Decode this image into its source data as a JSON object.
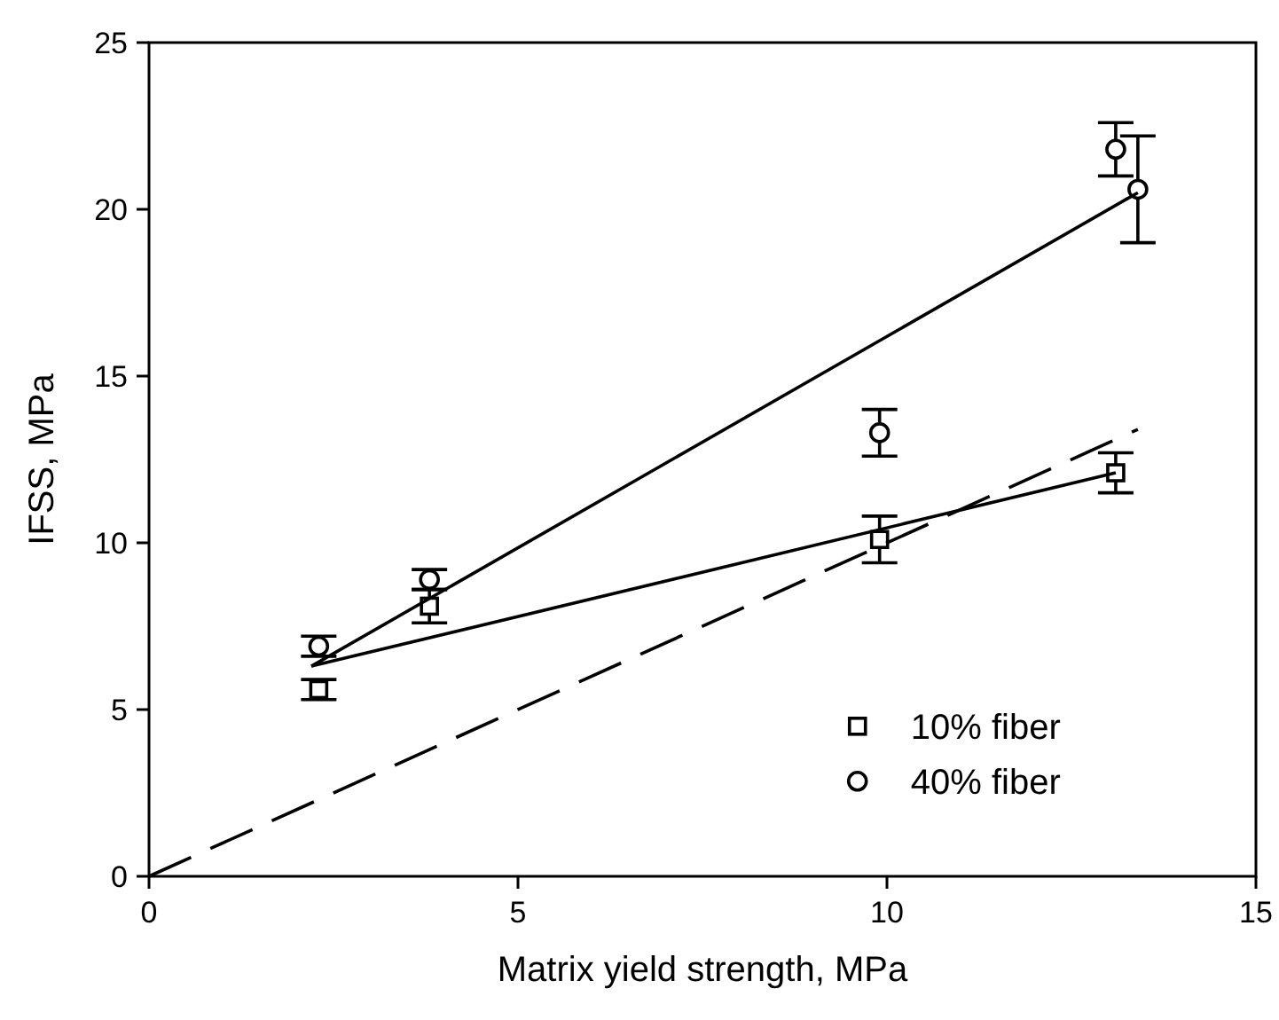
{
  "chart_data": {
    "type": "scatter",
    "xlabel": "Matrix yield strength, MPa",
    "ylabel": "IFSS, MPa",
    "xlim": [
      0,
      15
    ],
    "ylim": [
      0,
      25
    ],
    "xticks": [
      0,
      5,
      10,
      15
    ],
    "yticks": [
      0,
      5,
      10,
      15,
      20,
      25
    ],
    "grid": false,
    "legend": "bottom right",
    "series": [
      {
        "name": "10% fiber",
        "type": "scatter",
        "marker": "square",
        "color": "#000000",
        "x": [
          2.3,
          3.8,
          9.9,
          13.1
        ],
        "values": [
          5.6,
          8.1,
          10.1,
          12.1
        ],
        "errors": [
          0.3,
          0.5,
          0.7,
          0.6
        ]
      },
      {
        "name": "40% fiber",
        "type": "scatter",
        "marker": "circle",
        "color": "#000000",
        "x": [
          2.3,
          3.8,
          9.9,
          13.1,
          13.4
        ],
        "values": [
          6.9,
          8.9,
          13.3,
          21.8,
          20.6
        ],
        "errors": [
          0.3,
          0.3,
          0.7,
          0.8,
          1.6
        ]
      },
      {
        "type": "line",
        "marker": "none",
        "line_style": "solid",
        "color": "#000000",
        "x": [
          2.2,
          13.1
        ],
        "values": [
          6.3,
          12.1
        ]
      },
      {
        "type": "line",
        "marker": "none",
        "line_style": "solid",
        "color": "#000000",
        "x": [
          2.2,
          13.4
        ],
        "values": [
          6.3,
          20.5
        ]
      },
      {
        "type": "line",
        "marker": "none",
        "line_style": "dashed",
        "color": "#000000",
        "x": [
          0,
          13.4
        ],
        "values": [
          0,
          13.4
        ]
      }
    ]
  }
}
